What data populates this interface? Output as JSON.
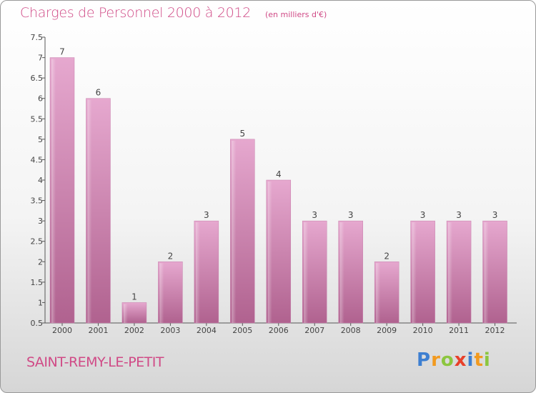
{
  "chart_data": {
    "type": "bar",
    "title": "Charges de Personnel 2000 à 2012",
    "subtitle": "(en milliers d'€)",
    "categories": [
      "2000",
      "2001",
      "2002",
      "2003",
      "2004",
      "2005",
      "2006",
      "2007",
      "2008",
      "2009",
      "2010",
      "2011",
      "2012"
    ],
    "values": [
      7,
      6,
      1,
      2,
      3,
      5,
      4,
      3,
      3,
      2,
      3,
      3,
      3
    ],
    "data_labels": [
      "7",
      "6",
      "1",
      "2",
      "3",
      "5",
      "4",
      "3",
      "3",
      "2",
      "3",
      "3",
      "3"
    ],
    "ylim": [
      0.5,
      7.5
    ],
    "yticks": [
      "0.5",
      "1",
      "1.5",
      "2",
      "2.5",
      "3",
      "3.5",
      "4",
      "4.5",
      "5",
      "5.5",
      "6",
      "6.5",
      "7",
      "7.5"
    ],
    "grid": false,
    "bar_color": "#d98cba"
  },
  "footer": {
    "commune": "SAINT-REMY-LE-PETIT",
    "logo": [
      {
        "ch": "P",
        "color": "#3d7fd1"
      },
      {
        "ch": "r",
        "color": "#f29a1f"
      },
      {
        "ch": "o",
        "color": "#8cc63f"
      },
      {
        "ch": "x",
        "color": "#e8402a"
      },
      {
        "ch": "i",
        "color": "#3d7fd1"
      },
      {
        "ch": "t",
        "color": "#f29a1f"
      },
      {
        "ch": "i",
        "color": "#8cc63f"
      }
    ]
  }
}
